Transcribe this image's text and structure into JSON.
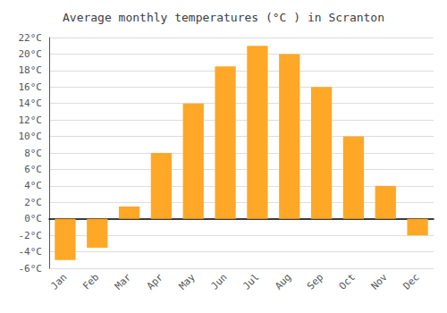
{
  "chart_data": {
    "type": "bar",
    "title": "Average monthly temperatures (°C ) in Scranton",
    "categories": [
      "Jan",
      "Feb",
      "Mar",
      "Apr",
      "May",
      "Jun",
      "Jul",
      "Aug",
      "Sep",
      "Oct",
      "Nov",
      "Dec"
    ],
    "values": [
      -5,
      -3.5,
      1.5,
      8,
      14,
      18.5,
      21,
      20,
      16,
      10,
      4,
      -2
    ],
    "color": "#FFA726",
    "ylim": [
      -6,
      22
    ],
    "yticks": [
      {
        "value": -6,
        "label": "-6°C"
      },
      {
        "value": -4,
        "label": "-4°C"
      },
      {
        "value": -2,
        "label": "-2°C"
      },
      {
        "value": 0,
        "label": "0°C"
      },
      {
        "value": 2,
        "label": "2°C"
      },
      {
        "value": 4,
        "label": "4°C"
      },
      {
        "value": 6,
        "label": "6°C"
      },
      {
        "value": 8,
        "label": "8°C"
      },
      {
        "value": 10,
        "label": "10°C"
      },
      {
        "value": 12,
        "label": "12°C"
      },
      {
        "value": 14,
        "label": "14°C"
      },
      {
        "value": 16,
        "label": "16°C"
      },
      {
        "value": 18,
        "label": "18°C"
      },
      {
        "value": 20,
        "label": "20°C"
      },
      {
        "value": 22,
        "label": "22°C"
      }
    ],
    "grid": true
  }
}
